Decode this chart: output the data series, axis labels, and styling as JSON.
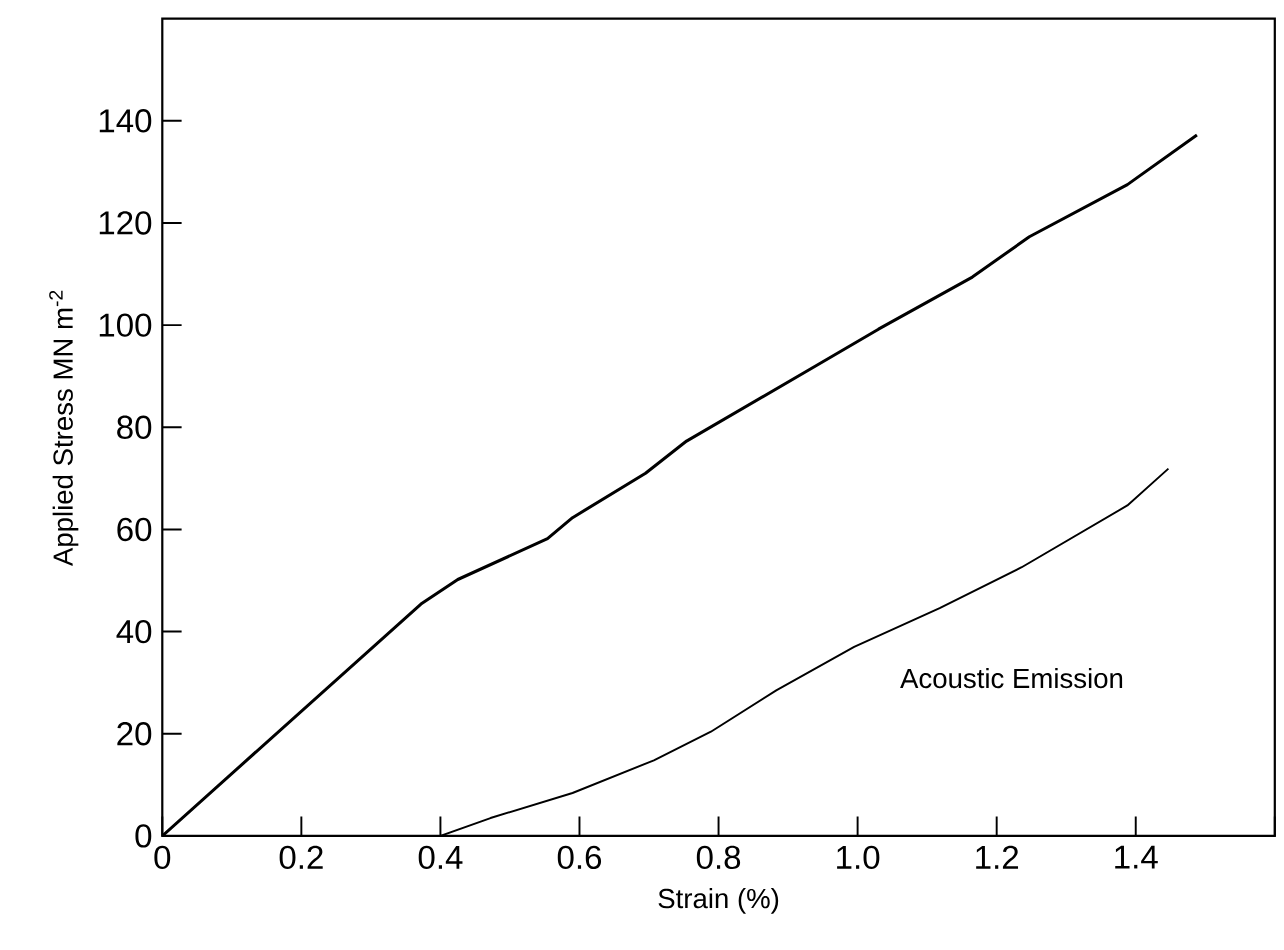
{
  "chart_data": {
    "type": "line",
    "xlabel": "Strain (%)",
    "ylabel": "Applied   Stress      MN m$^{-2}$",
    "xlim": [
      0,
      1.6
    ],
    "ylim": [
      0,
      160
    ],
    "xticks": [
      0,
      {
        "value": 0.2,
        "label": "0.2"
      },
      {
        "value": 0.4,
        "label": "0.4"
      },
      {
        "value": 0.6,
        "label": "0.6"
      },
      {
        "value": 0.8,
        "label": "0.8"
      },
      {
        "value": 1.0,
        "label": "1.0"
      },
      {
        "value": 1.2,
        "label": "1.2"
      },
      {
        "value": 1.4,
        "label": "1.4"
      },
      {
        "value": 1.6,
        "label": null
      }
    ],
    "yticks": [
      0,
      20,
      40,
      60,
      80,
      100,
      120,
      140
    ],
    "grid": false,
    "series": [
      {
        "color": "#000000",
        "x": [
          0,
          0.372,
          0.425,
          0.554,
          0.59,
          0.695,
          0.754,
          0.942,
          1.03,
          1.165,
          1.247,
          1.388,
          1.488
        ],
        "values": [
          0,
          45.4,
          50.2,
          58.2,
          62.3,
          71.0,
          77.3,
          92.2,
          99.2,
          109.4,
          117.3,
          127.5,
          137.2
        ]
      },
      {
        "name": "Acoustic Emission",
        "color": "#000000",
        "x": [
          0.4,
          0.472,
          0.59,
          0.707,
          0.789,
          0.883,
          0.995,
          1.118,
          1.236,
          1.388,
          1.447
        ],
        "values": [
          0,
          3.5,
          8.4,
          14.8,
          20.4,
          28.5,
          37,
          44.6,
          52.6,
          64.7,
          71.9
        ]
      }
    ]
  }
}
